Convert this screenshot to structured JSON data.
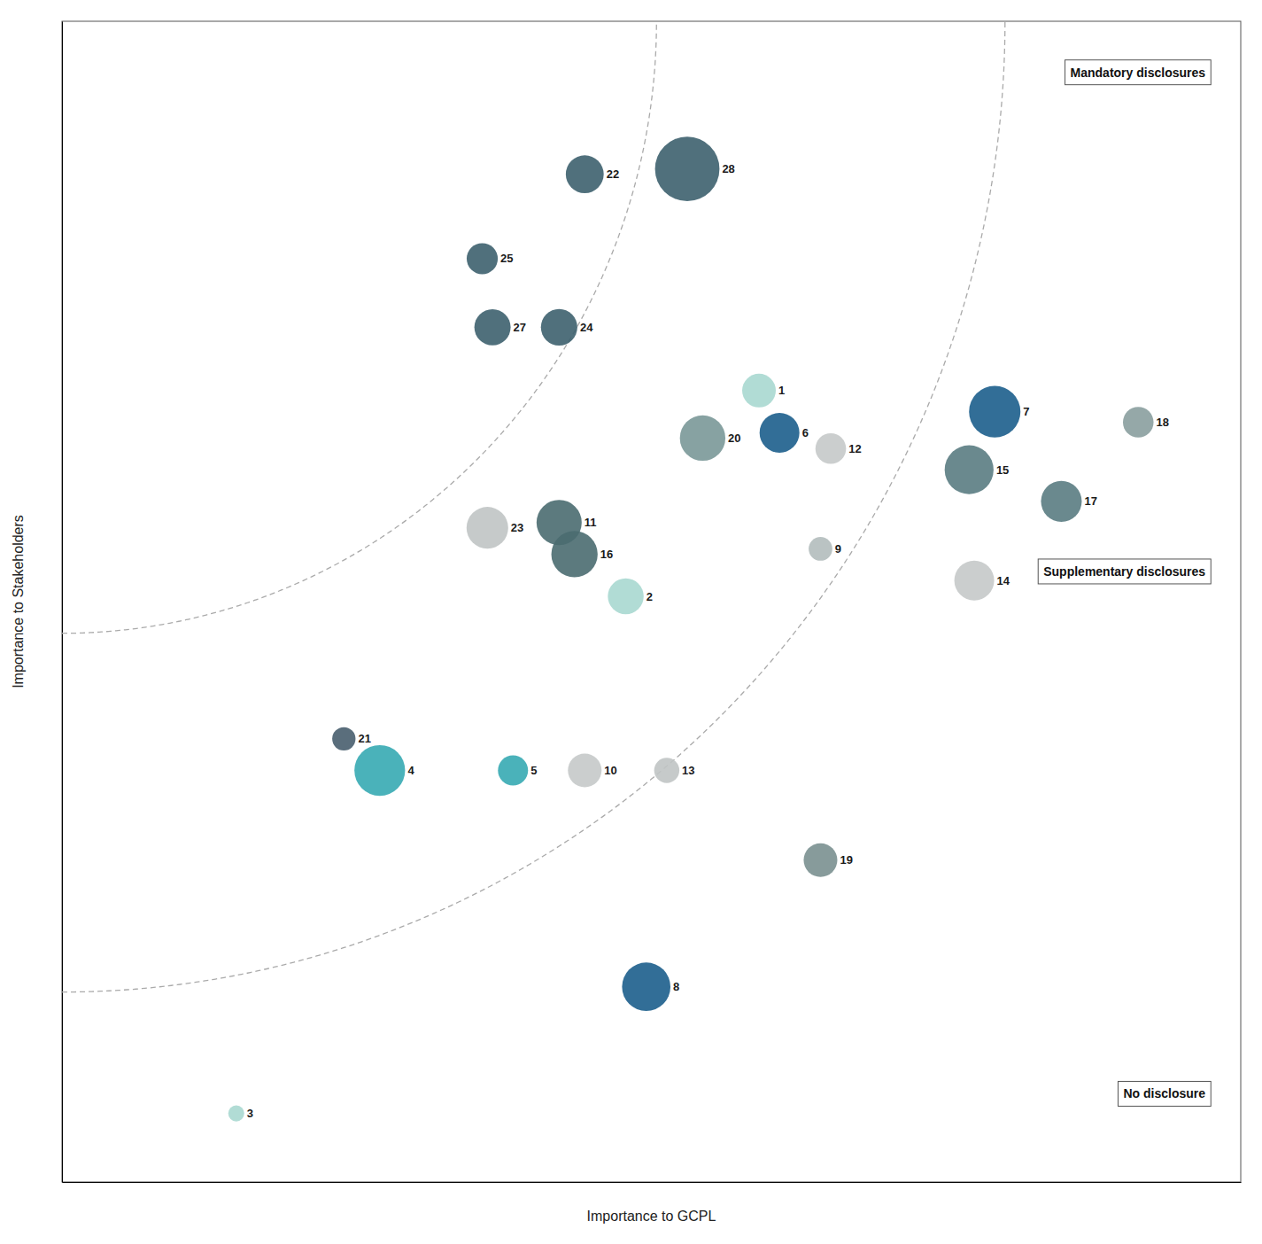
{
  "chart_data": {
    "type": "scatter",
    "xlabel": "Importance to GCPL",
    "ylabel": "Importance to Stakeholders",
    "x": [
      6.8,
      5.5,
      1.7,
      3.1,
      4.4,
      7.0,
      9.1,
      5.7,
      7.4,
      5.1,
      4.85,
      7.5,
      5.9,
      8.9,
      8.85,
      5.0,
      9.75,
      10.5,
      7.4,
      6.25,
      2.75,
      5.1,
      4.15,
      4.85,
      4.1,
      4.2,
      6.1
    ],
    "values": [
      7.5,
      5.55,
      0.65,
      3.9,
      3.9,
      7.1,
      7.3,
      1.85,
      6.0,
      3.9,
      6.25,
      6.95,
      3.9,
      5.7,
      6.75,
      5.95,
      6.45,
      7.2,
      3.05,
      7.05,
      4.2,
      9.55,
      6.2,
      8.1,
      8.75,
      8.1,
      9.6
    ],
    "sizes": [
      750,
      850,
      170,
      1700,
      600,
      1050,
      1750,
      1550,
      370,
      750,
      1350,
      620,
      420,
      1050,
      1580,
      1420,
      1100,
      620,
      750,
      1370,
      360,
      950,
      1150,
      880,
      640,
      870,
      2750
    ],
    "colors": [
      "#a8d8d0",
      "#a8d8d0",
      "#a8d8d0",
      "#36aab2",
      "#36aab2",
      "#1c5e8c",
      "#1c5e8c",
      "#1c5e8c",
      "#b2bcbc",
      "#c5c9c9",
      "#4a6b70",
      "#c5c9c9",
      "#c0c4c4",
      "#c5c9c9",
      "#5a7c82",
      "#4a6b70",
      "#5a7c82",
      "#8a9e9e",
      "#7a9090",
      "#7a9898",
      "#485e6e",
      "#3d606e",
      "#c0c4c4",
      "#3d606e",
      "#3d606e",
      "#3d606e",
      "#3d606e"
    ],
    "labels": [
      "1",
      "2",
      "3",
      "4",
      "5",
      "6",
      "7",
      "8",
      "9",
      "10",
      "11",
      "12",
      "13",
      "14",
      "15",
      "16",
      "17",
      "18",
      "19",
      "20",
      "21",
      "22",
      "23",
      "24",
      "25",
      "27",
      "28"
    ],
    "arcs": {
      "cx": 0.0,
      "cy": 11.0,
      "radii": [
        5.8,
        9.2
      ]
    },
    "annotations": [
      "Mandatory disclosures",
      "Supplementary disclosures",
      "No disclosure"
    ],
    "xlim": [
      0,
      11.5
    ],
    "ylim": [
      0,
      11.0
    ],
    "tick_labels": false,
    "grid": false
  }
}
